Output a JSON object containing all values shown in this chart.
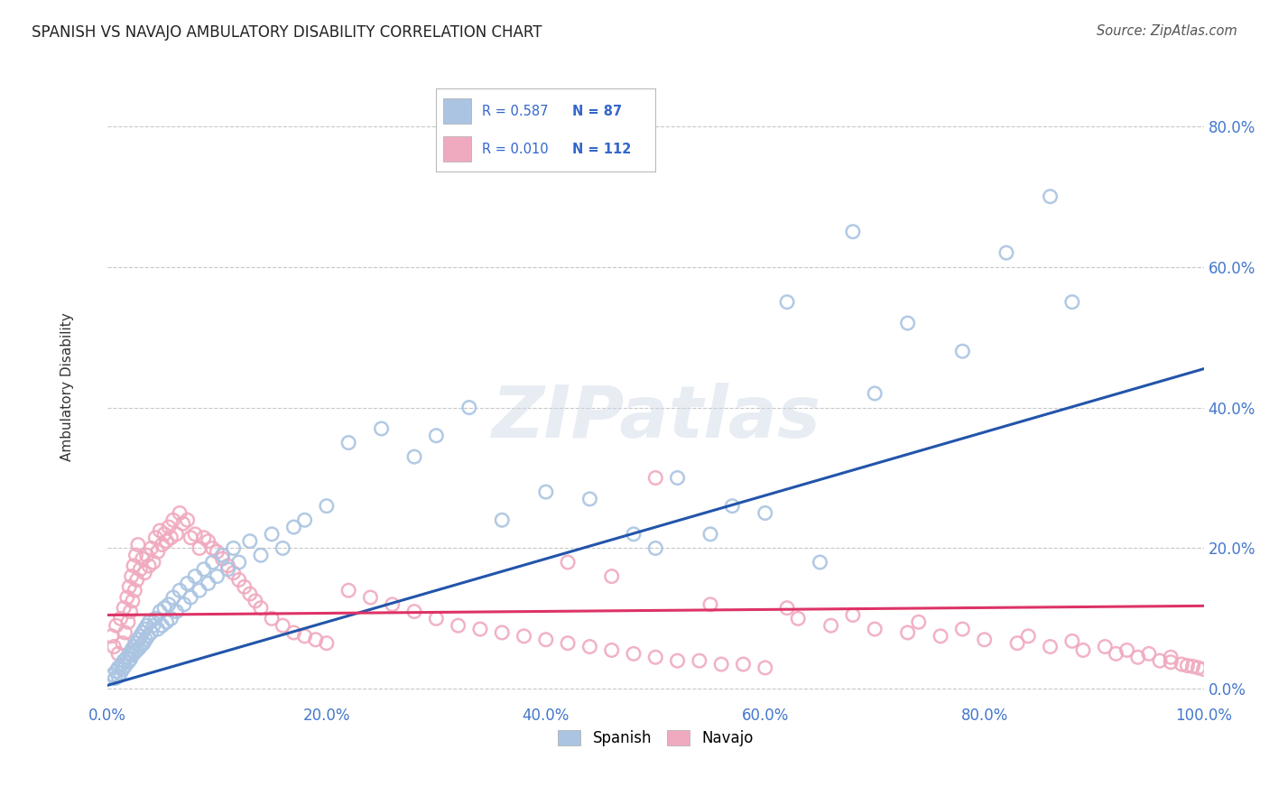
{
  "title": "SPANISH VS NAVAJO AMBULATORY DISABILITY CORRELATION CHART",
  "source": "Source: ZipAtlas.com",
  "ylabel": "Ambulatory Disability",
  "xlim": [
    0,
    1.0
  ],
  "ylim": [
    -0.02,
    0.88
  ],
  "yticks": [
    0.0,
    0.2,
    0.4,
    0.6,
    0.8
  ],
  "xticks": [
    0.0,
    0.2,
    0.4,
    0.6,
    0.8,
    1.0
  ],
  "xtick_labels": [
    "0.0%",
    "20.0%",
    "40.0%",
    "60.0%",
    "80.0%",
    "100.0%"
  ],
  "ytick_labels_right": [
    "0.0%",
    "20.0%",
    "40.0%",
    "60.0%",
    "80.0%"
  ],
  "ytick_right_vals": [
    0.0,
    0.2,
    0.4,
    0.6,
    0.8
  ],
  "spanish_R": 0.587,
  "spanish_N": 87,
  "navajo_R": 0.01,
  "navajo_N": 112,
  "spanish_color": "#aac4e2",
  "navajo_color": "#f0aabf",
  "spanish_line_color": "#2255aa",
  "navajo_line_color": "#dd3366",
  "background_color": "#ffffff",
  "grid_color": "#c8c8c8",
  "title_color": "#222222",
  "source_color": "#555555",
  "legend_R_color": "#3366cc",
  "legend_N_color": "#3366cc",
  "watermark": "ZIPatlas",
  "sp_line_x0": 0.0,
  "sp_line_y0": 0.005,
  "sp_line_x1": 1.0,
  "sp_line_y1": 0.455,
  "nav_line_x0": 0.0,
  "nav_line_y0": 0.105,
  "nav_line_x1": 1.0,
  "nav_line_y1": 0.118,
  "spanish_scatter_x": [
    0.005,
    0.007,
    0.008,
    0.01,
    0.01,
    0.012,
    0.013,
    0.014,
    0.015,
    0.016,
    0.018,
    0.019,
    0.02,
    0.021,
    0.022,
    0.023,
    0.024,
    0.025,
    0.026,
    0.027,
    0.028,
    0.029,
    0.03,
    0.031,
    0.032,
    0.033,
    0.034,
    0.035,
    0.036,
    0.037,
    0.038,
    0.04,
    0.042,
    0.044,
    0.046,
    0.048,
    0.05,
    0.052,
    0.054,
    0.056,
    0.058,
    0.06,
    0.063,
    0.066,
    0.07,
    0.073,
    0.076,
    0.08,
    0.084,
    0.088,
    0.092,
    0.096,
    0.1,
    0.105,
    0.11,
    0.115,
    0.12,
    0.13,
    0.14,
    0.15,
    0.16,
    0.17,
    0.18,
    0.2,
    0.22,
    0.25,
    0.28,
    0.3,
    0.33,
    0.36,
    0.4,
    0.44,
    0.48,
    0.52,
    0.57,
    0.62,
    0.68,
    0.73,
    0.78,
    0.82,
    0.86,
    0.88,
    0.5,
    0.55,
    0.6,
    0.65,
    0.7
  ],
  "spanish_scatter_y": [
    0.02,
    0.015,
    0.025,
    0.018,
    0.03,
    0.022,
    0.035,
    0.028,
    0.04,
    0.032,
    0.045,
    0.038,
    0.05,
    0.042,
    0.055,
    0.048,
    0.06,
    0.052,
    0.065,
    0.055,
    0.07,
    0.058,
    0.075,
    0.062,
    0.08,
    0.065,
    0.085,
    0.07,
    0.09,
    0.075,
    0.095,
    0.08,
    0.09,
    0.1,
    0.085,
    0.11,
    0.09,
    0.115,
    0.095,
    0.12,
    0.1,
    0.13,
    0.11,
    0.14,
    0.12,
    0.15,
    0.13,
    0.16,
    0.14,
    0.17,
    0.15,
    0.18,
    0.16,
    0.19,
    0.17,
    0.2,
    0.18,
    0.21,
    0.19,
    0.22,
    0.2,
    0.23,
    0.24,
    0.26,
    0.35,
    0.37,
    0.33,
    0.36,
    0.4,
    0.24,
    0.28,
    0.27,
    0.22,
    0.3,
    0.26,
    0.55,
    0.65,
    0.52,
    0.48,
    0.62,
    0.7,
    0.55,
    0.2,
    0.22,
    0.25,
    0.18,
    0.42
  ],
  "navajo_scatter_x": [
    0.004,
    0.006,
    0.008,
    0.01,
    0.012,
    0.014,
    0.015,
    0.016,
    0.018,
    0.019,
    0.02,
    0.021,
    0.022,
    0.023,
    0.024,
    0.025,
    0.026,
    0.027,
    0.028,
    0.03,
    0.032,
    0.034,
    0.036,
    0.038,
    0.04,
    0.042,
    0.044,
    0.046,
    0.048,
    0.05,
    0.052,
    0.054,
    0.056,
    0.058,
    0.06,
    0.063,
    0.066,
    0.069,
    0.073,
    0.076,
    0.08,
    0.084,
    0.088,
    0.092,
    0.096,
    0.1,
    0.105,
    0.11,
    0.115,
    0.12,
    0.125,
    0.13,
    0.135,
    0.14,
    0.15,
    0.16,
    0.17,
    0.18,
    0.19,
    0.2,
    0.22,
    0.24,
    0.26,
    0.28,
    0.3,
    0.32,
    0.34,
    0.36,
    0.38,
    0.4,
    0.42,
    0.44,
    0.46,
    0.48,
    0.5,
    0.52,
    0.54,
    0.56,
    0.58,
    0.6,
    0.63,
    0.66,
    0.7,
    0.73,
    0.76,
    0.8,
    0.83,
    0.86,
    0.89,
    0.92,
    0.94,
    0.96,
    0.97,
    0.98,
    0.985,
    0.99,
    0.995,
    1.0,
    0.62,
    0.68,
    0.74,
    0.78,
    0.84,
    0.88,
    0.91,
    0.93,
    0.95,
    0.97,
    0.5,
    0.55,
    0.46,
    0.42
  ],
  "navajo_scatter_y": [
    0.075,
    0.06,
    0.09,
    0.05,
    0.1,
    0.065,
    0.115,
    0.08,
    0.13,
    0.095,
    0.145,
    0.11,
    0.16,
    0.125,
    0.175,
    0.14,
    0.19,
    0.155,
    0.205,
    0.17,
    0.185,
    0.165,
    0.19,
    0.175,
    0.2,
    0.18,
    0.215,
    0.195,
    0.225,
    0.205,
    0.22,
    0.21,
    0.23,
    0.215,
    0.24,
    0.22,
    0.25,
    0.235,
    0.24,
    0.215,
    0.22,
    0.2,
    0.215,
    0.21,
    0.2,
    0.195,
    0.185,
    0.175,
    0.165,
    0.155,
    0.145,
    0.135,
    0.125,
    0.115,
    0.1,
    0.09,
    0.08,
    0.075,
    0.07,
    0.065,
    0.14,
    0.13,
    0.12,
    0.11,
    0.1,
    0.09,
    0.085,
    0.08,
    0.075,
    0.07,
    0.065,
    0.06,
    0.055,
    0.05,
    0.045,
    0.04,
    0.04,
    0.035,
    0.035,
    0.03,
    0.1,
    0.09,
    0.085,
    0.08,
    0.075,
    0.07,
    0.065,
    0.06,
    0.055,
    0.05,
    0.045,
    0.04,
    0.038,
    0.035,
    0.033,
    0.032,
    0.03,
    0.028,
    0.115,
    0.105,
    0.095,
    0.085,
    0.075,
    0.068,
    0.06,
    0.055,
    0.05,
    0.045,
    0.3,
    0.12,
    0.16,
    0.18
  ]
}
